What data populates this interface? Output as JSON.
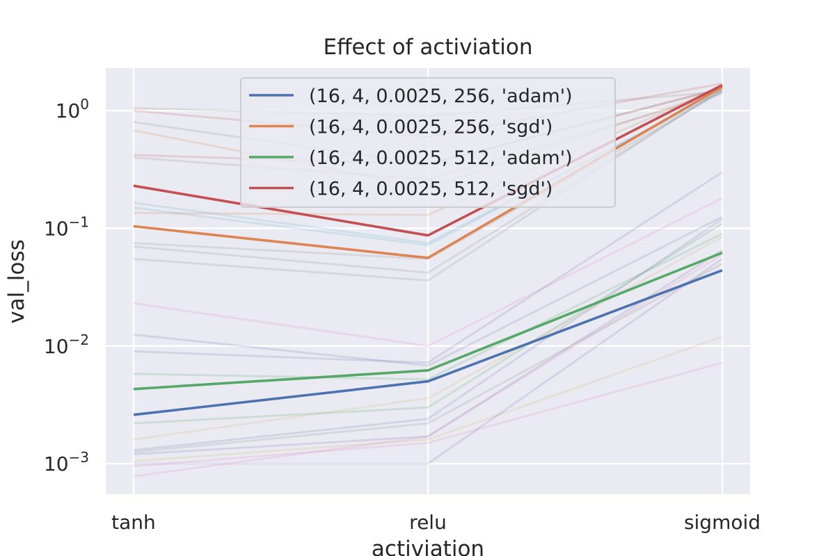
{
  "chart_data": {
    "type": "line",
    "title": "Effect of activiation",
    "xlabel": "activiation",
    "ylabel": "val_loss",
    "categories": [
      "tanh",
      "relu",
      "sigmoid"
    ],
    "yscale": "log",
    "ylim": [
      0.00055,
      2.3
    ],
    "yticks": [
      {
        "base": "10",
        "exp": "0"
      },
      {
        "base": "10",
        "exp": "−1"
      },
      {
        "base": "10",
        "exp": "−2"
      },
      {
        "base": "10",
        "exp": "−3"
      }
    ],
    "grid": true,
    "legend_position": "top-center",
    "series": [
      {
        "name": "(16, 4, 0.0025, 256, 'adam')",
        "color": "#4c72b0",
        "values": [
          0.0026,
          0.005,
          0.044
        ]
      },
      {
        "name": "(16, 4, 0.0025, 256, 'sgd')",
        "color": "#dd8452",
        "values": [
          0.104,
          0.056,
          1.6
        ]
      },
      {
        "name": "(16, 4, 0.0025, 512, 'adam')",
        "color": "#55a868",
        "values": [
          0.0043,
          0.0062,
          0.062
        ]
      },
      {
        "name": "(16, 4, 0.0025, 512, 'sgd')",
        "color": "#c44e52",
        "values": [
          0.23,
          0.087,
          1.65
        ]
      }
    ],
    "background_series": [
      {
        "color": "#8c8c8c",
        "values": [
          1.05,
          0.9,
          1.45
        ]
      },
      {
        "color": "#c44e52",
        "values": [
          1.0,
          0.6,
          1.7
        ]
      },
      {
        "color": "#8c8c8c",
        "values": [
          0.8,
          0.35,
          1.55
        ]
      },
      {
        "color": "#dd8452",
        "values": [
          0.68,
          0.22,
          1.5
        ]
      },
      {
        "color": "#c44e52",
        "values": [
          0.42,
          0.35,
          1.55
        ]
      },
      {
        "color": "#8c8c8c",
        "values": [
          0.4,
          0.26,
          1.4
        ]
      },
      {
        "color": "#64b5cd",
        "values": [
          0.165,
          0.075,
          1.45
        ]
      },
      {
        "color": "#64b5cd",
        "values": [
          0.15,
          0.072,
          1.5
        ]
      },
      {
        "color": "#dd8452",
        "values": [
          0.135,
          0.13,
          1.6
        ]
      },
      {
        "color": "#8c8c8c",
        "values": [
          0.075,
          0.055,
          1.45
        ]
      },
      {
        "color": "#8c8c8c",
        "values": [
          0.07,
          0.042,
          1.5
        ]
      },
      {
        "color": "#8c8c8c",
        "values": [
          0.055,
          0.036,
          1.55
        ]
      },
      {
        "color": "#da8bc3",
        "values": [
          0.023,
          0.01,
          0.18
        ]
      },
      {
        "color": "#8172b3",
        "values": [
          0.0125,
          0.0068,
          0.125
        ]
      },
      {
        "color": "#8172b3",
        "values": [
          0.009,
          0.0072,
          0.3
        ]
      },
      {
        "color": "#55a868",
        "values": [
          0.0058,
          0.0052,
          0.09
        ]
      },
      {
        "color": "#55a868",
        "values": [
          0.0022,
          0.003,
          0.11
        ]
      },
      {
        "color": "#ccb974",
        "values": [
          0.0016,
          0.0036,
          0.085
        ]
      },
      {
        "color": "#8172b3",
        "values": [
          0.0013,
          0.0024,
          0.12
        ]
      },
      {
        "color": "#8c8c8c",
        "values": [
          0.00125,
          0.0022,
          0.05
        ]
      },
      {
        "color": "#8172b3",
        "values": [
          0.0012,
          0.0017,
          0.065
        ]
      },
      {
        "color": "#ccb974",
        "values": [
          0.00105,
          0.0016,
          0.012
        ]
      },
      {
        "color": "#da8bc3",
        "values": [
          0.00095,
          0.0015,
          0.0072
        ]
      },
      {
        "color": "#8172b3",
        "values": [
          0.001,
          0.001,
          0.055
        ]
      },
      {
        "color": "#da8bc3",
        "values": [
          0.00078,
          0.0017,
          0.06
        ]
      }
    ]
  }
}
